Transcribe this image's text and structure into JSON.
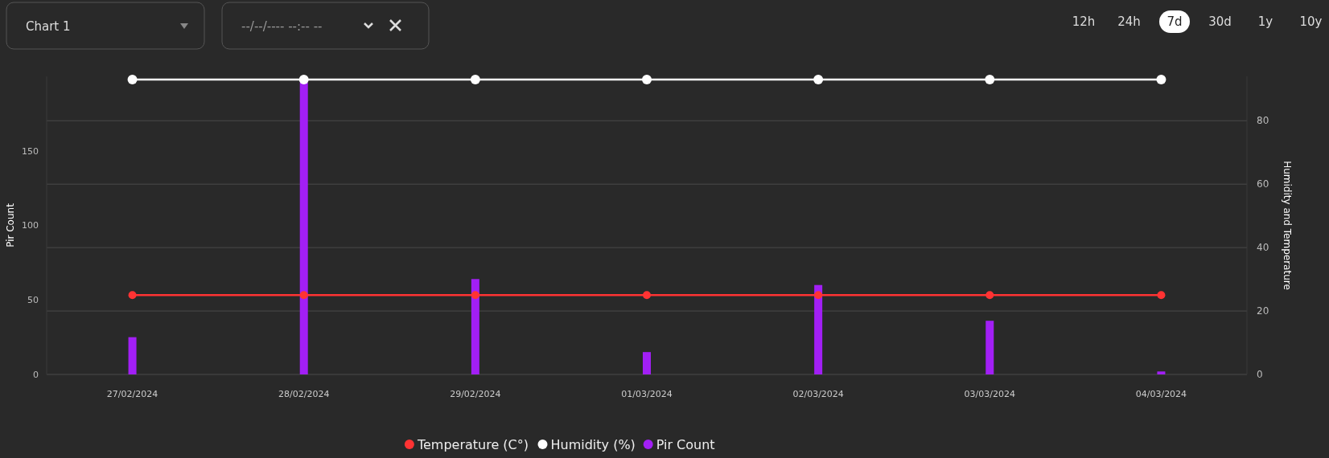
{
  "chart_data": {
    "type": "bar",
    "categories": [
      "27/02/2024",
      "28/02/2024",
      "29/02/2024",
      "01/03/2024",
      "02/03/2024",
      "03/03/2024",
      "04/03/2024"
    ],
    "series": [
      {
        "name": "Temperature (C°)",
        "type": "line",
        "axis": "y2",
        "color": "#ff3333",
        "values": [
          25,
          25,
          25,
          25,
          25,
          25,
          25
        ]
      },
      {
        "name": "Humidity (%)",
        "type": "line",
        "axis": "y2",
        "color": "#ffffff",
        "values": [
          93,
          93,
          93,
          93,
          93,
          93,
          93
        ]
      },
      {
        "name": "Pir Count",
        "color": "#a21ff5",
        "values": [
          25,
          196,
          64,
          15,
          60,
          36,
          2
        ]
      }
    ],
    "ylabel": "Pir Count",
    "y2label": "Humidity and Temperature",
    "ylim": [
      0,
      200
    ],
    "yticks": [
      0,
      50,
      100,
      150
    ],
    "y2lim": [
      0,
      94
    ],
    "y2ticks": [
      0,
      20,
      40,
      60,
      80
    ],
    "grid": true,
    "legend": "bottom",
    "marker": "circle",
    "annotations": [
      "Chart 1",
      "--/--/---- --:-- --",
      "12h",
      "24h",
      "7d",
      "30d",
      "1y",
      "10y"
    ]
  }
}
